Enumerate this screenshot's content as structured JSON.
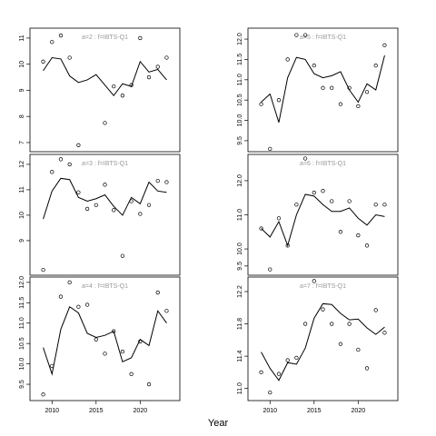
{
  "xlabel": "Year",
  "chart_data": [
    {
      "type": "line",
      "title": "a=2 : f=IBTS-Q1",
      "x": [
        2009,
        2010,
        2011,
        2012,
        2013,
        2014,
        2015,
        2016,
        2017,
        2018,
        2019,
        2020,
        2021,
        2022,
        2023
      ],
      "xlim": [
        2007.5,
        2024.5
      ],
      "ylim": [
        6.65,
        11.38
      ],
      "yticks": [
        7,
        8,
        9,
        10,
        11
      ],
      "series": [
        {
          "style": "line",
          "color": "#000000",
          "values": [
            9.75,
            10.25,
            10.2,
            9.55,
            9.3,
            9.4,
            9.6,
            9.2,
            8.8,
            9.25,
            9.15,
            10.1,
            9.7,
            9.8,
            9.4
          ]
        },
        {
          "style": "points",
          "color": "#000000",
          "values": [
            10.1,
            10.85,
            11.1,
            10.25,
            6.9,
            null,
            null,
            7.75,
            9.15,
            8.8,
            9.2,
            11.0,
            9.5,
            9.9,
            10.25
          ]
        }
      ]
    },
    {
      "type": "line",
      "title": "a=5 : f=IBTS-Q1",
      "x": [
        2009,
        2010,
        2011,
        2012,
        2013,
        2014,
        2015,
        2016,
        2017,
        2018,
        2019,
        2020,
        2021,
        2022,
        2023
      ],
      "xlim": [
        2007.5,
        2024.5
      ],
      "ylim": [
        9.23,
        12.27
      ],
      "yticks": [
        9.5,
        {
          "value": 10,
          "label": "10.0"
        },
        10.5,
        {
          "value": 11,
          "label": "11.0"
        },
        11.5,
        {
          "value": 12,
          "label": "12.0"
        }
      ],
      "series": [
        {
          "style": "line",
          "color": "#000000",
          "values": [
            10.45,
            10.65,
            9.95,
            11.05,
            11.55,
            11.5,
            11.15,
            11.05,
            11.1,
            11.2,
            10.75,
            10.45,
            10.9,
            10.75,
            11.6
          ]
        },
        {
          "style": "points",
          "color": "#000000",
          "values": [
            10.4,
            9.3,
            10.5,
            11.5,
            12.1,
            12.1,
            11.35,
            10.8,
            10.8,
            10.4,
            10.8,
            10.35,
            10.7,
            11.35,
            11.85
          ]
        }
      ]
    },
    {
      "type": "line",
      "title": "a=3 : f=IBTS-Q1",
      "x": [
        2009,
        2010,
        2011,
        2012,
        2013,
        2014,
        2015,
        2016,
        2017,
        2018,
        2019,
        2020,
        2021,
        2022,
        2023
      ],
      "xlim": [
        2007.5,
        2024.5
      ],
      "ylim": [
        7.64,
        12.39
      ],
      "yticks": [
        9,
        10,
        11,
        12
      ],
      "series": [
        {
          "style": "line",
          "color": "#000000",
          "values": [
            9.85,
            10.95,
            11.45,
            11.4,
            10.7,
            10.55,
            10.65,
            10.8,
            10.35,
            10.0,
            10.7,
            10.45,
            11.3,
            10.95,
            10.9
          ]
        },
        {
          "style": "points",
          "color": "#000000",
          "values": [
            7.85,
            11.7,
            12.2,
            12.0,
            10.9,
            10.25,
            10.4,
            11.2,
            10.2,
            8.4,
            10.55,
            10.05,
            10.4,
            11.35,
            11.3
          ]
        }
      ]
    },
    {
      "type": "line",
      "title": "a=6 : f=IBTS-Q1",
      "x": [
        2009,
        2010,
        2011,
        2012,
        2013,
        2014,
        2015,
        2016,
        2017,
        2018,
        2019,
        2020,
        2021,
        2022,
        2023
      ],
      "xlim": [
        2007.5,
        2024.5
      ],
      "ylim": [
        9.23,
        12.77
      ],
      "yticks": [
        9.5,
        {
          "value": 10,
          "label": "10.0"
        },
        {
          "value": 11,
          "label": "11.0"
        },
        {
          "value": 12,
          "label": "12.0"
        }
      ],
      "series": [
        {
          "style": "line",
          "color": "#000000",
          "values": [
            10.6,
            10.35,
            10.8,
            10.1,
            11.0,
            11.6,
            11.55,
            11.3,
            11.1,
            11.1,
            11.2,
            10.9,
            10.7,
            11.0,
            10.95
          ]
        },
        {
          "style": "points",
          "color": "#000000",
          "values": [
            10.6,
            9.4,
            10.9,
            10.1,
            11.3,
            12.65,
            11.65,
            11.7,
            11.4,
            10.5,
            11.4,
            10.4,
            10.1,
            11.3,
            11.3
          ]
        }
      ]
    },
    {
      "type": "line",
      "title": "a=4 : f=IBTS-Q1",
      "x": [
        2009,
        2010,
        2011,
        2012,
        2013,
        2014,
        2015,
        2016,
        2017,
        2018,
        2019,
        2020,
        2021,
        2022,
        2023
      ],
      "xlim": [
        2007.5,
        2024.5
      ],
      "xticks": [
        2010,
        2015,
        2020
      ],
      "ylim": [
        9.1,
        12.13
      ],
      "yticks": [
        9.5,
        {
          "value": 10,
          "label": "10.0"
        },
        10.5,
        {
          "value": 11,
          "label": "11.0"
        },
        11.5,
        {
          "value": 12,
          "label": "12.0"
        }
      ],
      "series": [
        {
          "style": "line",
          "color": "#000000",
          "values": [
            10.4,
            9.75,
            10.85,
            11.4,
            11.25,
            10.75,
            10.65,
            10.7,
            10.8,
            10.05,
            10.15,
            10.6,
            10.45,
            11.3,
            11.0
          ]
        },
        {
          "style": "points",
          "color": "#000000",
          "values": [
            9.25,
            9.95,
            11.65,
            12.0,
            11.4,
            11.45,
            10.6,
            10.25,
            10.8,
            10.3,
            9.75,
            10.55,
            9.5,
            11.75,
            11.3
          ]
        }
      ]
    },
    {
      "type": "line",
      "title": "a=7 : f=IBTS-Q1",
      "x": [
        2009,
        2010,
        2011,
        2012,
        2013,
        2014,
        2015,
        2016,
        2017,
        2018,
        2019,
        2020,
        2021,
        2022,
        2023
      ],
      "xlim": [
        2007.5,
        2024.5
      ],
      "xticks": [
        2010,
        2015,
        2020
      ],
      "ylim": [
        10.85,
        12.38
      ],
      "yticks": [
        {
          "value": 11,
          "label": "11.0"
        },
        11.4,
        11.8,
        12.2
      ],
      "series": [
        {
          "style": "line",
          "color": "#000000",
          "values": [
            11.45,
            11.25,
            11.1,
            11.32,
            11.3,
            11.5,
            11.87,
            12.05,
            12.04,
            11.93,
            11.85,
            11.86,
            11.75,
            11.67,
            11.76
          ]
        },
        {
          "style": "points",
          "color": "#000000",
          "values": [
            11.2,
            10.95,
            11.18,
            11.35,
            11.38,
            11.8,
            12.33,
            11.98,
            11.8,
            11.55,
            11.8,
            11.48,
            11.25,
            11.97,
            11.69
          ]
        }
      ]
    }
  ]
}
